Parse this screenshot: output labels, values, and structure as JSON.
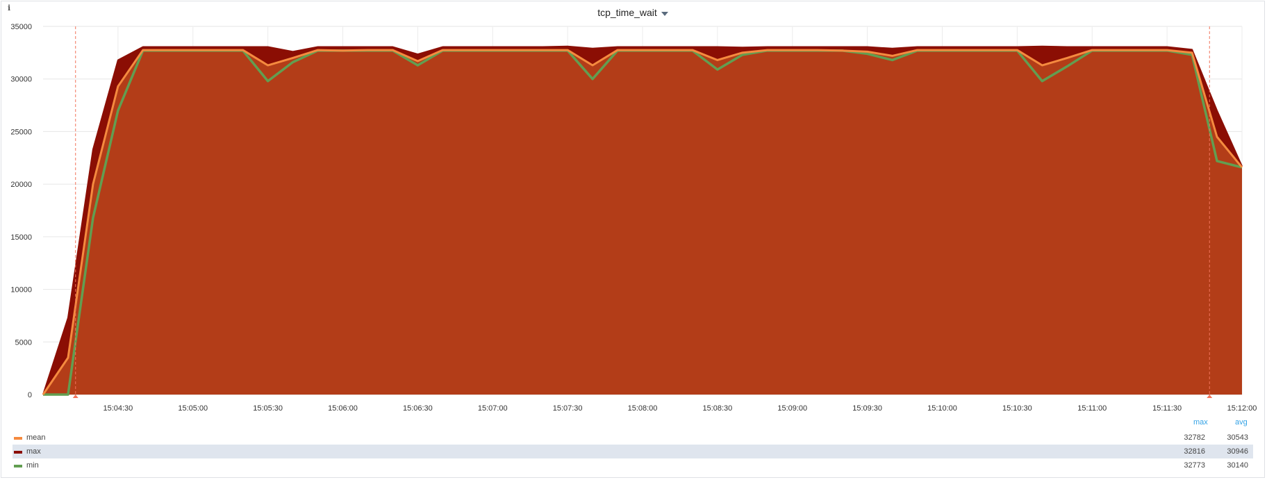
{
  "panel": {
    "title": "tcp_time_wait",
    "info_icon": "info-icon"
  },
  "colors": {
    "mean": "#f58a3f",
    "max": "#8b0e04",
    "min": "#629e51",
    "fill": "#b33d18",
    "legend_header": "#33a2e5"
  },
  "legend": {
    "columns": [
      "max",
      "avg"
    ],
    "rows": [
      {
        "name": "mean",
        "max": "32782",
        "avg": "30543"
      },
      {
        "name": "max",
        "max": "32816",
        "avg": "30946"
      },
      {
        "name": "min",
        "max": "32773",
        "avg": "30140"
      }
    ]
  },
  "chart_data": {
    "type": "area",
    "title": "tcp_time_wait",
    "xlabel": "",
    "ylabel": "",
    "x_ticks": [
      "15:04:30",
      "15:05:00",
      "15:05:30",
      "15:06:00",
      "15:06:30",
      "15:07:00",
      "15:07:30",
      "15:08:00",
      "15:08:30",
      "15:09:00",
      "15:09:30",
      "15:10:00",
      "15:10:30",
      "15:11:00",
      "15:11:30",
      "15:12:00"
    ],
    "y_ticks": [
      0,
      5000,
      10000,
      15000,
      20000,
      25000,
      30000,
      35000
    ],
    "ylim": [
      0,
      35000
    ],
    "x_seconds_range": [
      "15:04:00",
      "15:12:00"
    ],
    "annotations_at": [
      "15:04:13",
      "15:11:47"
    ],
    "x": [
      "15:04:00",
      "15:04:10",
      "15:04:20",
      "15:04:30",
      "15:04:40",
      "15:04:50",
      "15:05:00",
      "15:05:10",
      "15:05:20",
      "15:05:30",
      "15:05:40",
      "15:05:50",
      "15:06:00",
      "15:06:10",
      "15:06:20",
      "15:06:30",
      "15:06:40",
      "15:06:50",
      "15:07:00",
      "15:07:10",
      "15:07:20",
      "15:07:30",
      "15:07:40",
      "15:07:50",
      "15:08:00",
      "15:08:10",
      "15:08:20",
      "15:08:30",
      "15:08:40",
      "15:08:50",
      "15:09:00",
      "15:09:10",
      "15:09:20",
      "15:09:30",
      "15:09:40",
      "15:09:50",
      "15:10:00",
      "15:10:10",
      "15:10:20",
      "15:10:30",
      "15:10:40",
      "15:10:50",
      "15:11:00",
      "15:11:10",
      "15:11:20",
      "15:11:30",
      "15:11:40",
      "15:11:50",
      "15:12:00"
    ],
    "series": [
      {
        "name": "max",
        "values": [
          0,
          7300,
          23300,
          31800,
          33050,
          33050,
          33050,
          33050,
          33050,
          33050,
          32600,
          33050,
          33050,
          33050,
          33050,
          32350,
          33050,
          33050,
          33050,
          33050,
          33050,
          33100,
          32900,
          33050,
          33050,
          33050,
          33050,
          33050,
          33000,
          33050,
          33050,
          33050,
          33050,
          33050,
          32900,
          33050,
          33050,
          33050,
          33050,
          33050,
          33100,
          33050,
          33050,
          33050,
          33050,
          33050,
          32800,
          27000,
          21700
        ]
      },
      {
        "name": "mean",
        "values": [
          0,
          3500,
          20000,
          29300,
          32750,
          32750,
          32750,
          32750,
          32750,
          31300,
          32000,
          32750,
          32700,
          32750,
          32750,
          31700,
          32750,
          32750,
          32750,
          32750,
          32750,
          32750,
          31300,
          32750,
          32750,
          32750,
          32750,
          31800,
          32500,
          32750,
          32750,
          32750,
          32700,
          32600,
          32200,
          32750,
          32750,
          32750,
          32750,
          32750,
          31300,
          32000,
          32750,
          32750,
          32750,
          32750,
          32500,
          24500,
          21600
        ]
      },
      {
        "name": "min",
        "values": [
          0,
          0,
          16800,
          27000,
          32700,
          32700,
          32700,
          32700,
          32700,
          29800,
          31600,
          32700,
          32700,
          32700,
          32700,
          31300,
          32700,
          32700,
          32700,
          32700,
          32700,
          32700,
          30000,
          32700,
          32700,
          32700,
          32700,
          30900,
          32300,
          32700,
          32700,
          32700,
          32700,
          32400,
          31800,
          32700,
          32700,
          32700,
          32700,
          32700,
          29800,
          31200,
          32700,
          32700,
          32700,
          32700,
          32300,
          22200,
          21600
        ]
      }
    ]
  }
}
